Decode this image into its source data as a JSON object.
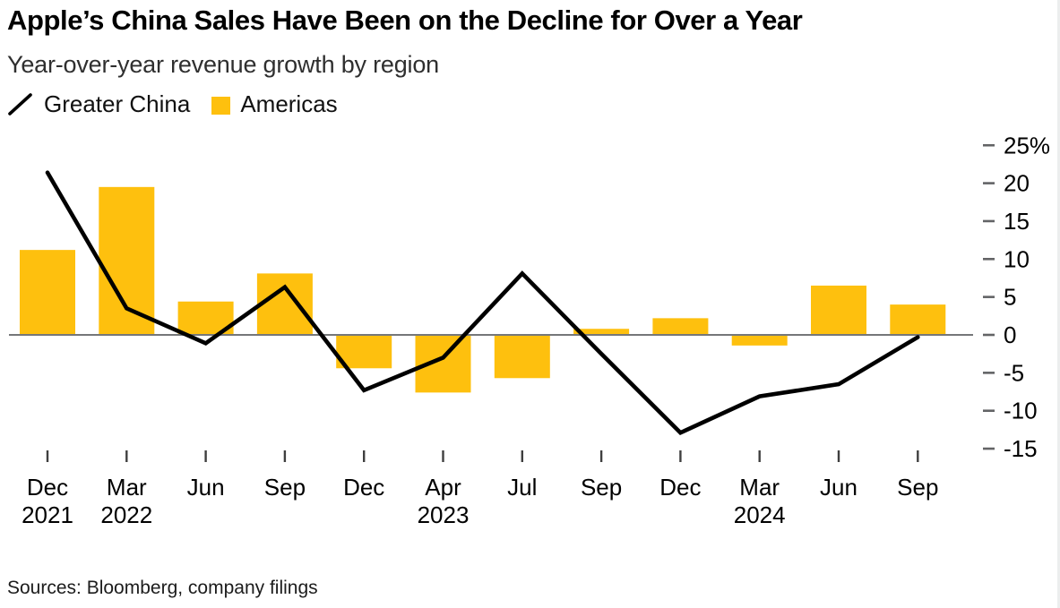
{
  "header": {
    "title": "Apple’s China Sales Have Been on the Decline for Over a Year",
    "subtitle": "Year-over-year revenue growth by region"
  },
  "legend": {
    "line": {
      "label": "Greater China",
      "color": "#000000"
    },
    "bar": {
      "label": "Americas",
      "color": "#fec00e"
    }
  },
  "footer": {
    "sources": "Sources: Bloomberg, company filings"
  },
  "chart_data": {
    "type": "combo",
    "title": "Apple’s China Sales Have Been on the Decline for Over a Year",
    "subtitle": "Year-over-year revenue growth by region",
    "unit": "%",
    "categories": [
      {
        "month": "Dec",
        "year": "2021"
      },
      {
        "month": "Mar",
        "year": "2022"
      },
      {
        "month": "Jun",
        "year": ""
      },
      {
        "month": "Sep",
        "year": ""
      },
      {
        "month": "Dec",
        "year": ""
      },
      {
        "month": "Apr",
        "year": "2023"
      },
      {
        "month": "Jul",
        "year": ""
      },
      {
        "month": "Sep",
        "year": ""
      },
      {
        "month": "Dec",
        "year": ""
      },
      {
        "month": "Mar",
        "year": "2024"
      },
      {
        "month": "Jun",
        "year": ""
      },
      {
        "month": "Sep",
        "year": ""
      }
    ],
    "series": [
      {
        "name": "Greater China",
        "type": "line",
        "color": "#000000",
        "values": [
          21.4,
          3.5,
          -1.1,
          6.3,
          -7.3,
          -3.0,
          8.1,
          -2.5,
          -12.9,
          -8.1,
          -6.5,
          -0.3
        ]
      },
      {
        "name": "Americas",
        "type": "bar",
        "color": "#fec00e",
        "values": [
          11.2,
          19.5,
          4.4,
          8.1,
          -4.4,
          -7.6,
          -5.7,
          0.8,
          2.2,
          -1.4,
          6.5,
          4.0
        ]
      }
    ],
    "y_ticks": [
      {
        "value": 25,
        "label": "25%"
      },
      {
        "value": 20,
        "label": "20"
      },
      {
        "value": 15,
        "label": "15"
      },
      {
        "value": 10,
        "label": "10"
      },
      {
        "value": 5,
        "label": "5"
      },
      {
        "value": 0,
        "label": "0"
      },
      {
        "value": -5,
        "label": "-5"
      },
      {
        "value": -10,
        "label": "-10"
      },
      {
        "value": -15,
        "label": "-15"
      }
    ],
    "ylim": [
      -15,
      25
    ],
    "grid": "zero-line-only",
    "legend_position": "top-left",
    "y_axis_side": "right"
  }
}
